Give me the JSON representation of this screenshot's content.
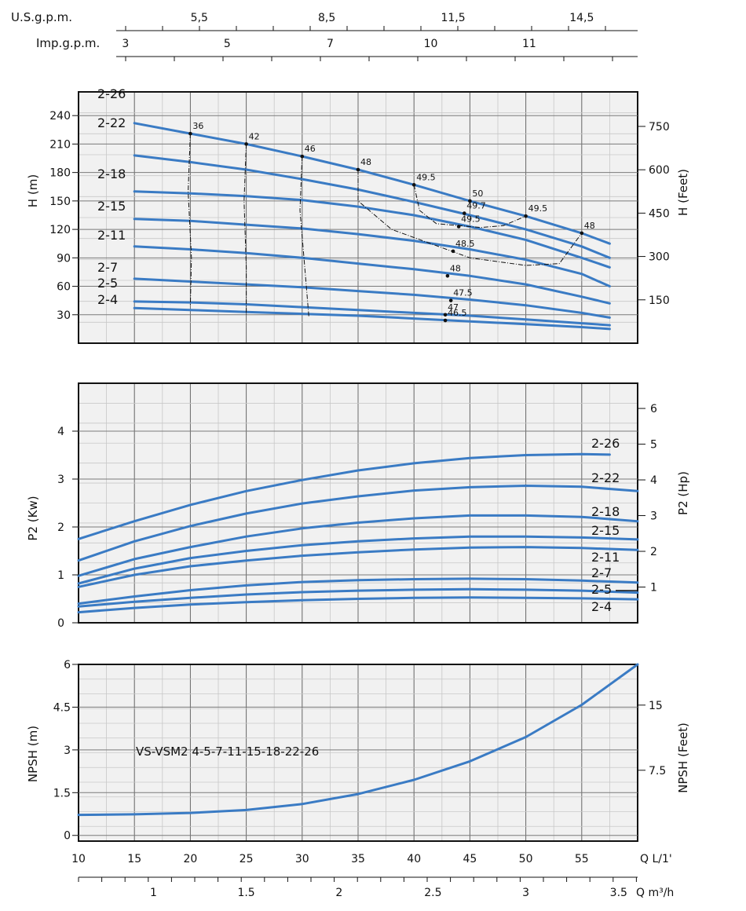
{
  "chart_data": [
    {
      "type": "line",
      "title": "",
      "ylabel_left": "H (m)",
      "ylabel_right": "H (Feet)",
      "xlim": [
        10,
        60
      ],
      "ylim": [
        0,
        265
      ],
      "y_left_ticks": [
        30,
        60,
        90,
        120,
        150,
        180,
        210,
        240
      ],
      "y_right_ticks": [
        150,
        300,
        450,
        600,
        750
      ],
      "top_axes": [
        {
          "label": "U.S.g.p.m.",
          "ticks": [
            {
              "label": "5,5",
              "x": 20.8
            },
            {
              "label": "8,5",
              "x": 32.2
            },
            {
              "label": "11,5",
              "x": 43.5
            },
            {
              "label": "14,5",
              "x": 55.0
            }
          ]
        },
        {
          "label": "Imp.g.p.m.",
          "ticks": [
            {
              "label": "3",
              "x": 14.2
            },
            {
              "label": "5",
              "x": 23.3
            },
            {
              "label": "7",
              "x": 32.5
            },
            {
              "label": "10",
              "x": 41.5
            },
            {
              "label": "11",
              "x": 50.3
            }
          ]
        }
      ],
      "series": [
        {
          "name": "2-26",
          "x": [
            15,
            20,
            25,
            30,
            35,
            40,
            45,
            50,
            55,
            57.5
          ],
          "y": [
            232,
            221,
            210,
            197,
            183,
            167,
            150,
            134,
            116,
            105
          ]
        },
        {
          "name": "2-22",
          "x": [
            15,
            20,
            25,
            30,
            35,
            40,
            45,
            50,
            55,
            57.5
          ],
          "y": [
            198,
            191,
            183,
            173,
            162,
            149,
            135,
            120,
            102,
            90
          ]
        },
        {
          "name": "2-18",
          "x": [
            15,
            20,
            25,
            30,
            35,
            40,
            45,
            50,
            55,
            57.5
          ],
          "y": [
            160,
            158,
            155,
            151,
            144,
            135,
            123,
            109,
            90,
            80
          ]
        },
        {
          "name": "2-15",
          "x": [
            15,
            20,
            25,
            30,
            35,
            40,
            45,
            50,
            55,
            57.5
          ],
          "y": [
            131,
            129,
            125,
            121,
            115,
            108,
            99,
            88,
            73,
            60
          ]
        },
        {
          "name": "2-11",
          "x": [
            15,
            20,
            25,
            30,
            35,
            40,
            45,
            50,
            55,
            57.5
          ],
          "y": [
            102,
            99,
            95,
            90,
            84,
            78,
            71,
            62,
            49,
            42
          ]
        },
        {
          "name": "2-7",
          "x": [
            15,
            20,
            25,
            30,
            35,
            40,
            45,
            50,
            55,
            57.5
          ],
          "y": [
            68,
            65,
            62,
            59,
            55,
            51,
            46,
            40,
            32,
            27
          ]
        },
        {
          "name": "2-5",
          "x": [
            15,
            20,
            25,
            30,
            35,
            40,
            45,
            50,
            55,
            57.5
          ],
          "y": [
            44,
            43,
            41,
            38,
            35,
            32,
            29,
            25,
            21,
            19
          ]
        },
        {
          "name": "2-4",
          "x": [
            15,
            20,
            25,
            30,
            35,
            40,
            45,
            50,
            55,
            57.5
          ],
          "y": [
            37,
            35,
            33,
            31,
            29,
            26,
            23,
            20,
            17,
            15
          ]
        }
      ],
      "efficiency_points": [
        {
          "label": "36",
          "x": 20,
          "y": 221
        },
        {
          "label": "42",
          "x": 25,
          "y": 210
        },
        {
          "label": "46",
          "x": 30,
          "y": 197
        },
        {
          "label": "48",
          "x": 35,
          "y": 183
        },
        {
          "label": "49.5",
          "x": 40,
          "y": 167
        },
        {
          "label": "50",
          "x": 45,
          "y": 150
        },
        {
          "label": "49.7",
          "x": 44.5,
          "y": 137
        },
        {
          "label": "49.5",
          "x": 44,
          "y": 123
        },
        {
          "label": "49.5",
          "x": 50,
          "y": 134
        },
        {
          "label": "48",
          "x": 55,
          "y": 116
        },
        {
          "label": "48.5",
          "x": 43.5,
          "y": 97
        },
        {
          "label": "48",
          "x": 43,
          "y": 71
        },
        {
          "label": "47.5",
          "x": 43.3,
          "y": 45
        },
        {
          "label": "47",
          "x": 42.8,
          "y": 30
        },
        {
          "label": "46.5",
          "x": 42.8,
          "y": 24
        }
      ]
    },
    {
      "type": "line",
      "title": "",
      "ylabel_left": "P2 (Kw)",
      "ylabel_right": "P2 (Hp)",
      "xlim": [
        10,
        60
      ],
      "ylim": [
        0,
        5
      ],
      "y_left_ticks": [
        0,
        1,
        2,
        3,
        4
      ],
      "y_right_ticks": [
        1,
        2,
        3,
        4,
        5,
        6
      ],
      "series": [
        {
          "name": "2-26",
          "x": [
            10,
            15,
            20,
            25,
            30,
            35,
            40,
            45,
            50,
            55,
            57.5
          ],
          "y": [
            1.75,
            2.12,
            2.46,
            2.75,
            2.98,
            3.18,
            3.33,
            3.44,
            3.5,
            3.52,
            3.51
          ]
        },
        {
          "name": "2-22",
          "x": [
            10,
            15,
            20,
            25,
            30,
            35,
            40,
            45,
            50,
            55,
            60
          ],
          "y": [
            1.3,
            1.7,
            2.02,
            2.28,
            2.49,
            2.64,
            2.76,
            2.83,
            2.86,
            2.84,
            2.75
          ]
        },
        {
          "name": "2-18",
          "x": [
            10,
            15,
            20,
            25,
            30,
            35,
            40,
            45,
            50,
            55,
            60
          ],
          "y": [
            0.98,
            1.33,
            1.58,
            1.8,
            1.97,
            2.09,
            2.18,
            2.24,
            2.24,
            2.21,
            2.12
          ]
        },
        {
          "name": "2-15",
          "x": [
            10,
            15,
            20,
            25,
            30,
            35,
            40,
            45,
            50,
            55,
            60
          ],
          "y": [
            0.82,
            1.13,
            1.35,
            1.5,
            1.62,
            1.7,
            1.76,
            1.8,
            1.8,
            1.78,
            1.74
          ]
        },
        {
          "name": "2-11",
          "x": [
            10,
            15,
            20,
            25,
            30,
            35,
            40,
            45,
            50,
            55,
            60
          ],
          "y": [
            0.75,
            1.0,
            1.18,
            1.3,
            1.4,
            1.47,
            1.53,
            1.57,
            1.58,
            1.56,
            1.52
          ]
        },
        {
          "name": "2-7",
          "x": [
            10,
            15,
            20,
            25,
            30,
            35,
            40,
            45,
            50,
            55,
            60
          ],
          "y": [
            0.4,
            0.55,
            0.68,
            0.78,
            0.85,
            0.89,
            0.91,
            0.92,
            0.91,
            0.88,
            0.84
          ]
        },
        {
          "name": "2-5",
          "x": [
            10,
            15,
            20,
            25,
            30,
            35,
            40,
            45,
            50,
            55,
            60
          ],
          "y": [
            0.34,
            0.44,
            0.52,
            0.59,
            0.64,
            0.67,
            0.69,
            0.7,
            0.69,
            0.67,
            0.63
          ]
        },
        {
          "name": "2-4",
          "x": [
            10,
            15,
            20,
            25,
            30,
            35,
            40,
            45,
            50,
            55,
            60
          ],
          "y": [
            0.22,
            0.31,
            0.38,
            0.43,
            0.47,
            0.5,
            0.52,
            0.53,
            0.52,
            0.51,
            0.49
          ]
        }
      ]
    },
    {
      "type": "line",
      "title": "VS-VSM2 4-5-7-11-15-18-22-26",
      "ylabel_left": "NPSH (m)",
      "ylabel_right": "NPSH (Feet)",
      "xlabel": "Q L/1'",
      "xlabel2": "Q m³/h",
      "xlim": [
        10,
        60
      ],
      "ylim": [
        -0.2,
        6
      ],
      "x_ticks": [
        10,
        15,
        20,
        25,
        30,
        35,
        40,
        45,
        50,
        55
      ],
      "x2_ticks": [
        {
          "label": "1",
          "x": 16.7
        },
        {
          "label": "1.5",
          "x": 25.0
        },
        {
          "label": "2",
          "x": 33.3
        },
        {
          "label": "2.5",
          "x": 41.7
        },
        {
          "label": "3",
          "x": 50.0
        },
        {
          "label": "3.5",
          "x": 58.3
        }
      ],
      "y_left_ticks": [
        0,
        1.5,
        3,
        4.5,
        6
      ],
      "y_left_tick_labels": [
        "0",
        "1.5",
        "3",
        "4.5",
        "6"
      ],
      "y_right_ticks": [
        7.5,
        15
      ],
      "series": [
        {
          "name": "",
          "x": [
            10,
            15,
            20,
            25,
            30,
            35,
            40,
            45,
            50,
            55,
            60
          ],
          "y": [
            0.72,
            0.74,
            0.79,
            0.89,
            1.1,
            1.45,
            1.95,
            2.6,
            3.45,
            4.58,
            6.0
          ]
        }
      ]
    }
  ]
}
